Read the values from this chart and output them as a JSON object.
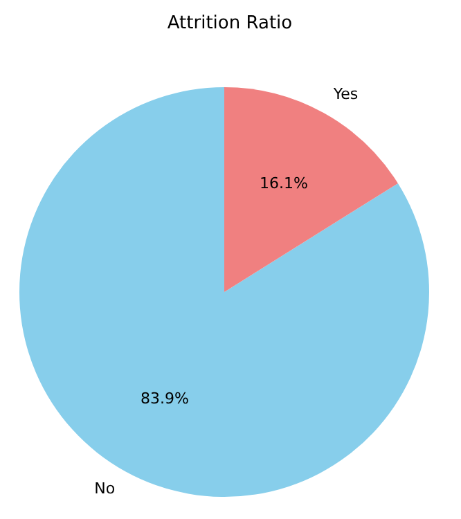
{
  "chart_data": {
    "type": "pie",
    "title": "Attrition Ratio",
    "categories": [
      "No",
      "Yes"
    ],
    "values": [
      83.9,
      16.1
    ],
    "colors": [
      "#87ceeb",
      "#f08080"
    ],
    "value_labels": [
      "83.9%",
      "16.1%"
    ],
    "legend": false
  }
}
